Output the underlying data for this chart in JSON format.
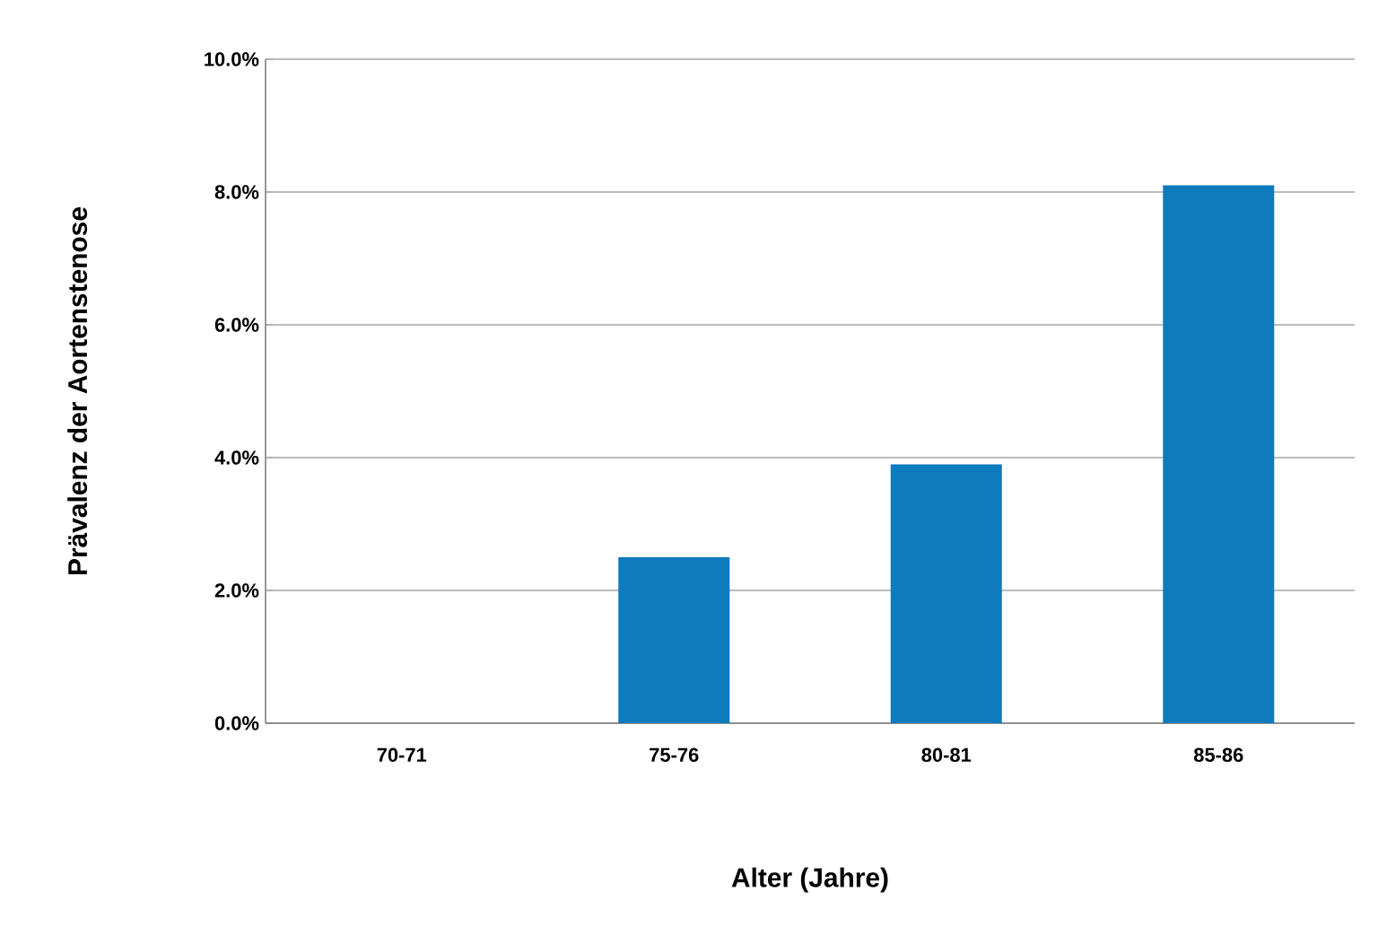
{
  "chart_data": {
    "type": "bar",
    "xlabel": "Alter (Jahre)",
    "ylabel": "Prävalenz der Aortenstenose",
    "categories": [
      "70-71",
      "75-76",
      "80-81",
      "85-86"
    ],
    "values": [
      0,
      2.5,
      3.9,
      8.1
    ],
    "color": "#0e7bbd",
    "ylim": [
      0,
      10
    ],
    "yticks": [
      {
        "value": 0,
        "label": "0.0%"
      },
      {
        "value": 2,
        "label": "2.0%"
      },
      {
        "value": 4,
        "label": "4.0%"
      },
      {
        "value": 6,
        "label": "6.0%"
      },
      {
        "value": 8,
        "label": "8.0%"
      },
      {
        "value": 10,
        "label": "10.0%"
      }
    ],
    "grid": "y"
  }
}
